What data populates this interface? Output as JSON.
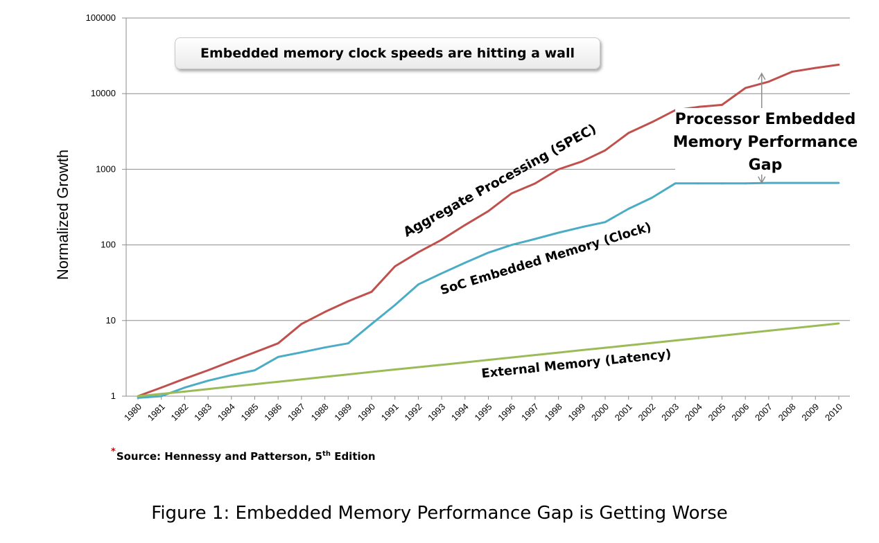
{
  "headline": "Embedded memory clock speeds are hitting a wall",
  "source": {
    "marker": "*",
    "text": "Source: Hennessy and Patterson, 5",
    "sup": "th",
    "suffix": " Edition"
  },
  "caption": "Figure 1: Embedded Memory Performance Gap is Getting Worse",
  "gap_label": [
    "Processor Embedded",
    "Memory Performance",
    "Gap"
  ],
  "chart_data": {
    "type": "line",
    "ylabel": "Normalized Growth",
    "yscale": "log",
    "ylim": [
      1,
      100000
    ],
    "yticks": [
      1,
      10,
      100,
      1000,
      10000,
      100000
    ],
    "ytick_labels": [
      "1",
      "10",
      "100",
      "1000",
      "10000",
      "100000"
    ],
    "grid": "horizontal",
    "legend": "none",
    "categories": [
      "1980",
      "1981",
      "1982",
      "1983",
      "1984",
      "1985",
      "1986",
      "1987",
      "1988",
      "1989",
      "1990",
      "1991",
      "1992",
      "1993",
      "1994",
      "1995",
      "1996",
      "1997",
      "1998",
      "1999",
      "2000",
      "2001",
      "2002",
      "2003",
      "2004",
      "2005",
      "2006",
      "2007",
      "2008",
      "2009",
      "2010"
    ],
    "series": [
      {
        "color": "#c0504d",
        "label": "Aggregate Processing (SPEC)",
        "values": [
          1,
          1.3,
          1.7,
          2.2,
          2.9,
          3.8,
          5,
          9,
          13,
          18,
          24,
          52,
          80,
          117,
          183,
          280,
          481,
          649,
          997,
          1267,
          1779,
          3016,
          4195,
          6043,
          6681,
          7108,
          11865,
          14387,
          19484,
          21871,
          24129
        ]
      },
      {
        "color": "#4bacc6",
        "label": "SoC Embedded Memory (Clock)",
        "values": [
          0.95,
          1,
          1.3,
          1.6,
          1.9,
          2.2,
          3.3,
          3.8,
          4.4,
          5,
          9,
          16,
          30,
          42,
          58,
          79,
          100,
          120,
          145,
          172,
          200,
          300,
          420,
          650,
          650,
          650,
          650,
          660,
          660,
          660,
          660
        ]
      },
      {
        "color": "#9bbb59",
        "label": "External Memory (Latency)",
        "values": [
          1,
          1.07,
          1.15,
          1.24,
          1.34,
          1.44,
          1.55,
          1.67,
          1.8,
          1.94,
          2.09,
          2.25,
          2.42,
          2.6,
          2.8,
          3.02,
          3.25,
          3.5,
          3.77,
          4.06,
          4.37,
          4.7,
          5.06,
          5.45,
          5.87,
          6.32,
          6.81,
          7.33,
          7.89,
          8.5,
          9.15
        ]
      }
    ]
  }
}
